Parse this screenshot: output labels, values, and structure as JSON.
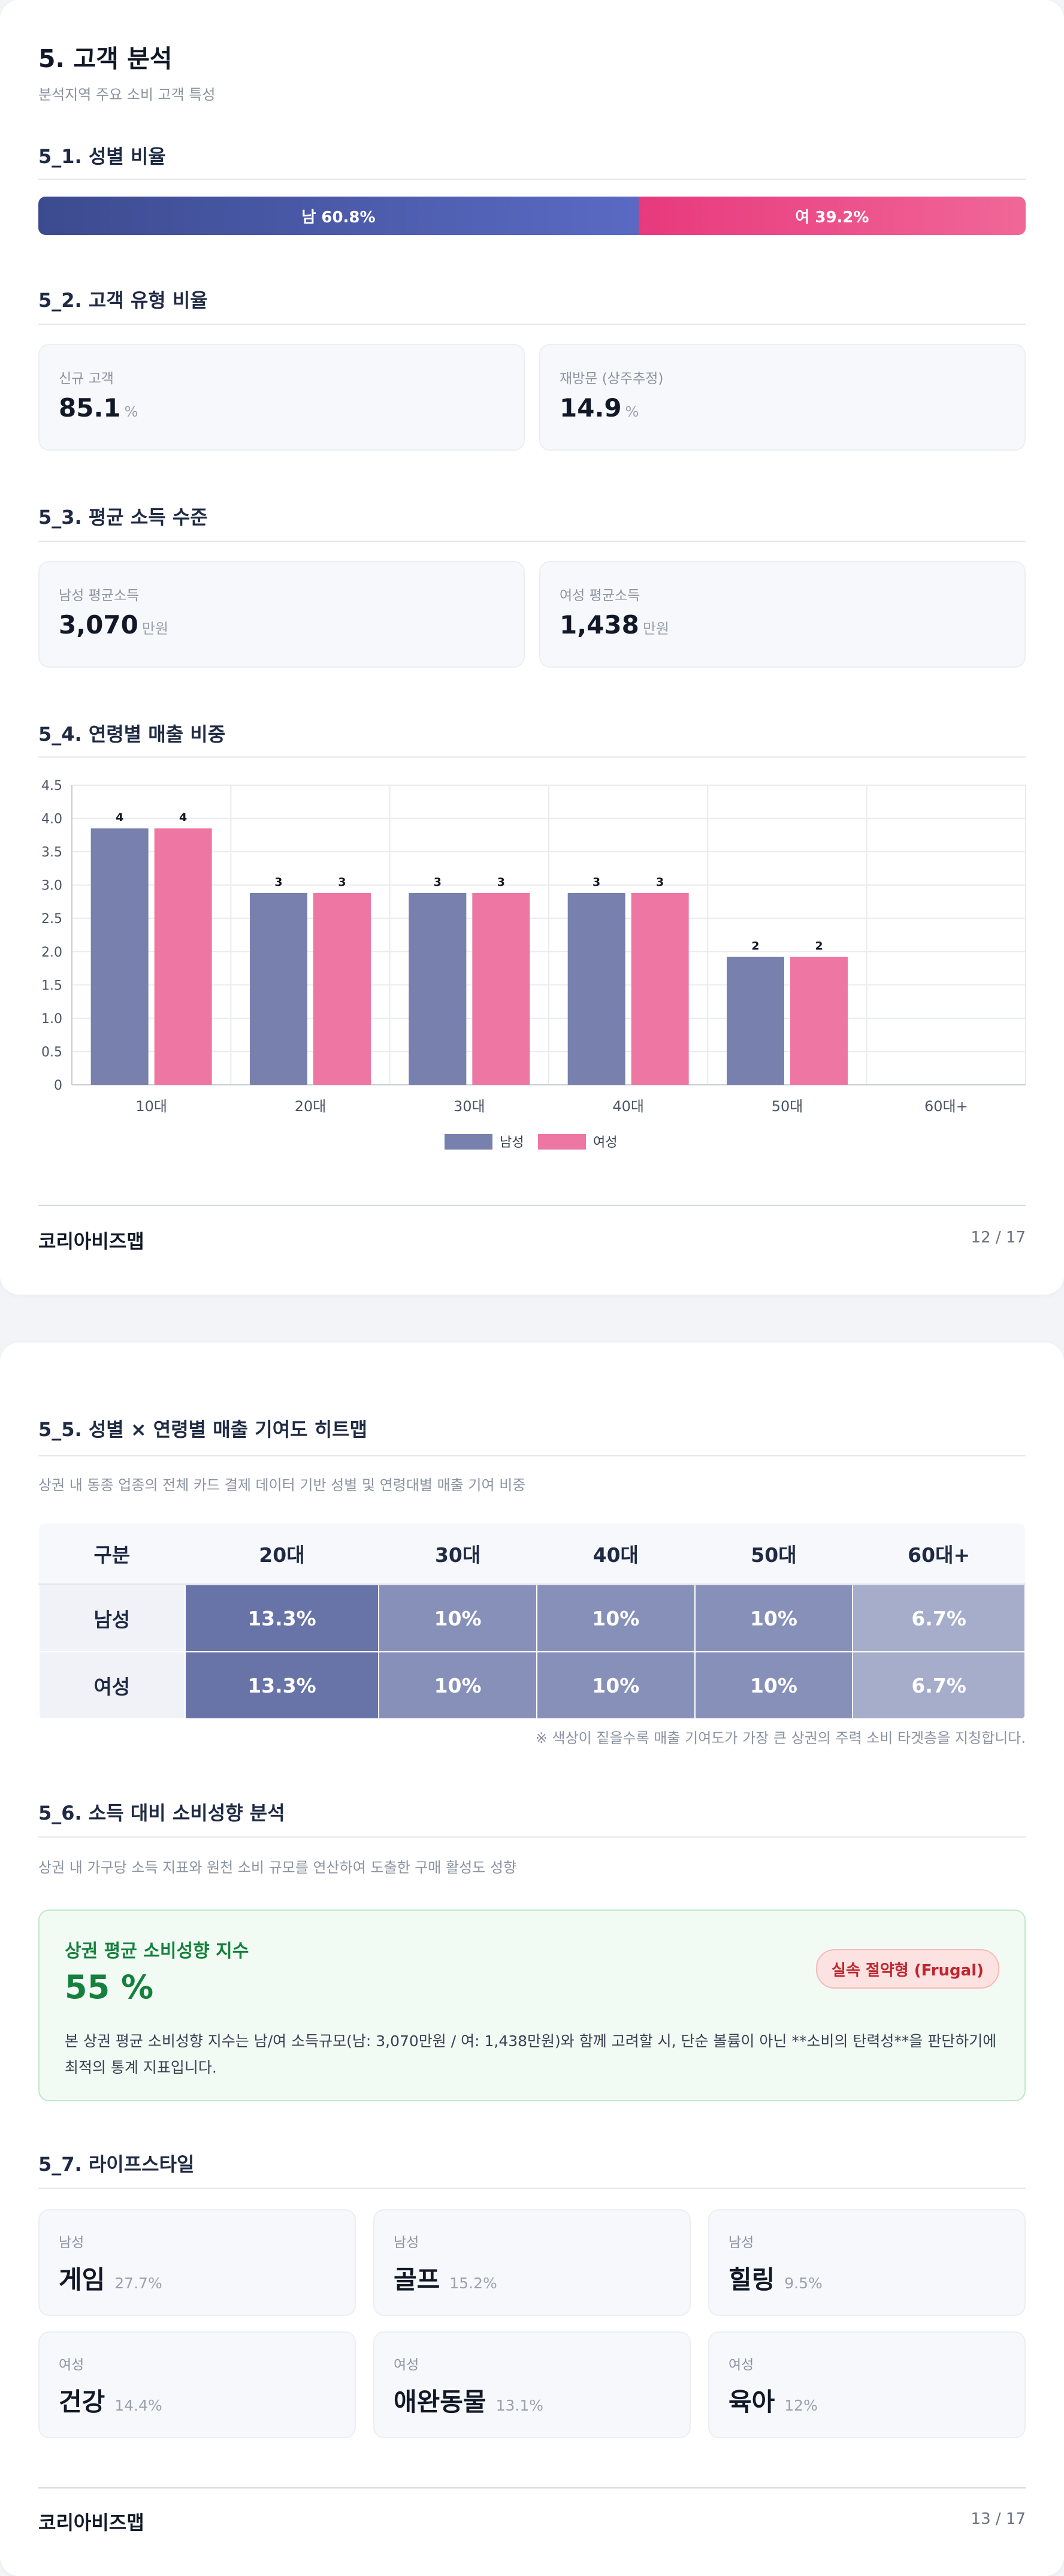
{
  "page1": {
    "title": "5. 고객 분석",
    "subtitle": "분석지역 주요 소비 고객 특성",
    "s1": {
      "title": "5_1. 성별 비율",
      "male_label": "남 60.8%",
      "female_label": "여 39.2%",
      "male_share": 60.8,
      "male_color": "#4a5aad",
      "female_color": "#ec4c89"
    },
    "s2": {
      "title": "5_2. 고객 유형 비율",
      "cards": [
        {
          "label": "신규 고객",
          "value": "85.1",
          "unit": "%"
        },
        {
          "label": "재방문 (상주추정)",
          "value": "14.9",
          "unit": "%"
        }
      ]
    },
    "s3": {
      "title": "5_3. 평균 소득 수준",
      "cards": [
        {
          "label": "남성 평균소득",
          "value": "3,070",
          "unit": "만원"
        },
        {
          "label": "여성 평균소득",
          "value": "1,438",
          "unit": "만원"
        }
      ]
    },
    "s4": {
      "title": "5_4. 연령별 매출 비중"
    },
    "footer": {
      "brand": "코리아비즈맵",
      "page": "12 / 17"
    }
  },
  "chart_data": {
    "type": "bar",
    "title": "",
    "xlabel": "",
    "ylabel": "",
    "categories": [
      "10대",
      "20대",
      "30대",
      "40대",
      "50대",
      "60대+"
    ],
    "series": [
      {
        "name": "남성",
        "values": [
          3.85,
          2.88,
          2.88,
          2.88,
          1.92,
          0
        ],
        "labels": [
          "4",
          "3",
          "3",
          "3",
          "2",
          ""
        ],
        "color": "#7880ad"
      },
      {
        "name": "여성",
        "values": [
          3.85,
          2.88,
          2.88,
          2.88,
          1.92,
          0
        ],
        "labels": [
          "4",
          "3",
          "3",
          "3",
          "2",
          ""
        ],
        "color": "#ee76a3"
      }
    ],
    "ylim": [
      0,
      4.5
    ],
    "yticks": [
      "0",
      "0.5",
      "1.0",
      "1.5",
      "2.0",
      "2.5",
      "3.0",
      "3.5",
      "4.0",
      "4.5"
    ],
    "grid": true,
    "legend_position": "bottom"
  },
  "page2": {
    "s5": {
      "title": "5_5. 성별 × 연령별 매출 기여도 히트맵",
      "desc": "상권 내 동종 업종의 전체 카드 결제 데이터 기반 성별 및 연령대별 매출 기여 비중",
      "headers": [
        "구분",
        "20대",
        "30대",
        "40대",
        "50대",
        "60대+"
      ],
      "rows": [
        {
          "label": "남성",
          "cells": [
            "13.3%",
            "10%",
            "10%",
            "10%",
            "6.7%"
          ]
        },
        {
          "label": "여성",
          "cells": [
            "13.3%",
            "10%",
            "10%",
            "10%",
            "6.7%"
          ]
        }
      ],
      "cell_colors": [
        "#6874a7",
        "#8790b9",
        "#8790b9",
        "#8790b9",
        "#a6adcb"
      ],
      "note": "※ 색상이 짙을수록 매출 기여도가 가장 큰 상권의 주력 소비 타겟층을 지칭합니다."
    },
    "s6": {
      "title": "5_6. 소득 대비 소비성향 분석",
      "desc": "상권 내 가구당 소득 지표와 원천 소비 규모를 연산하여 도출한 구매 활성도 성향",
      "box_title": "상권 평균 소비성향 지수",
      "box_value": "55 %",
      "badge": "실속 절약형 (Frugal)",
      "box_text": "본 상권 평균 소비성향 지수는 남/여 소득규모(남: 3,070만원 / 여: 1,438만원)와 함께 고려할 시, 단순 볼륨이 아닌 **소비의 탄력성**을 판단하기에 최적의 통계 지표입니다."
    },
    "s7": {
      "title": "5_7. 라이프스타일",
      "items": [
        {
          "gender": "남성",
          "name": "게임",
          "pct": "27.7%"
        },
        {
          "gender": "남성",
          "name": "골프",
          "pct": "15.2%"
        },
        {
          "gender": "남성",
          "name": "힐링",
          "pct": "9.5%"
        },
        {
          "gender": "여성",
          "name": "건강",
          "pct": "14.4%"
        },
        {
          "gender": "여성",
          "name": "애완동물",
          "pct": "13.1%"
        },
        {
          "gender": "여성",
          "name": "육아",
          "pct": "12%"
        }
      ]
    },
    "footer": {
      "brand": "코리아비즈맵",
      "page": "13 / 17"
    }
  }
}
